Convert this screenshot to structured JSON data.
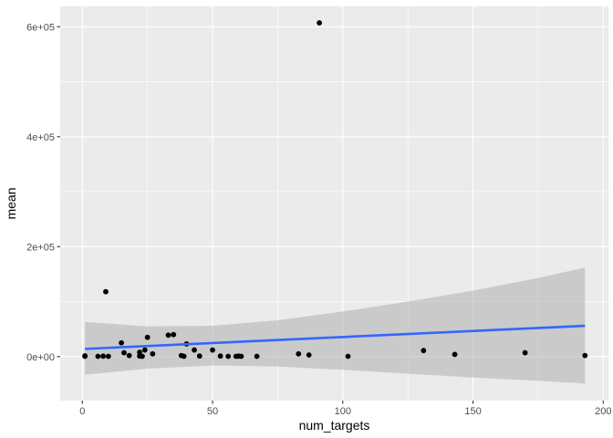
{
  "chart_data": {
    "type": "scatter",
    "title": "",
    "xlabel": "num_targets",
    "ylabel": "mean",
    "xlim": [
      -8.5,
      202
    ],
    "ylim": [
      -80000,
      637000
    ],
    "x_ticks": [
      0,
      50,
      100,
      150,
      200
    ],
    "x_tick_labels": [
      "0",
      "50",
      "100",
      "150",
      "200"
    ],
    "y_ticks": [
      0,
      200000,
      400000,
      600000
    ],
    "y_tick_labels": [
      "0e+00",
      "2e+05",
      "4e+05",
      "6e+05"
    ],
    "grid": true,
    "legend": "none",
    "colors": {
      "panel": "#ebebeb",
      "grid_major": "#ffffff",
      "points": "#000000",
      "trend_line": "#3366ff",
      "confidence_band": "#999999"
    },
    "points": [
      {
        "x": 1,
        "y": 500
      },
      {
        "x": 1,
        "y": 1500
      },
      {
        "x": 6,
        "y": 500
      },
      {
        "x": 8,
        "y": 800
      },
      {
        "x": 9,
        "y": 118000
      },
      {
        "x": 10,
        "y": 500
      },
      {
        "x": 15,
        "y": 25000
      },
      {
        "x": 16,
        "y": 7000
      },
      {
        "x": 18,
        "y": 2000
      },
      {
        "x": 22,
        "y": 8000
      },
      {
        "x": 22,
        "y": 1000
      },
      {
        "x": 23,
        "y": 500
      },
      {
        "x": 24,
        "y": 12000
      },
      {
        "x": 25,
        "y": 35000
      },
      {
        "x": 27,
        "y": 5000
      },
      {
        "x": 33,
        "y": 39000
      },
      {
        "x": 35,
        "y": 40000
      },
      {
        "x": 38,
        "y": 2000
      },
      {
        "x": 39,
        "y": 500
      },
      {
        "x": 40,
        "y": 23000
      },
      {
        "x": 43,
        "y": 12000
      },
      {
        "x": 45,
        "y": 1000
      },
      {
        "x": 50,
        "y": 12000
      },
      {
        "x": 53,
        "y": 1000
      },
      {
        "x": 56,
        "y": 500
      },
      {
        "x": 59,
        "y": 500
      },
      {
        "x": 60,
        "y": 800
      },
      {
        "x": 61,
        "y": 500
      },
      {
        "x": 67,
        "y": 500
      },
      {
        "x": 83,
        "y": 5000
      },
      {
        "x": 87,
        "y": 3000
      },
      {
        "x": 91,
        "y": 607000
      },
      {
        "x": 102,
        "y": 500
      },
      {
        "x": 131,
        "y": 11000
      },
      {
        "x": 143,
        "y": 4000
      },
      {
        "x": 170,
        "y": 7000
      },
      {
        "x": 193,
        "y": 2000
      }
    ],
    "trend_line": {
      "method": "linear",
      "x": [
        1,
        193
      ],
      "y": [
        14000,
        56000
      ]
    },
    "confidence_band": {
      "x": [
        1,
        25,
        50,
        75,
        100,
        125,
        150,
        175,
        193
      ],
      "lower": [
        -33000,
        -22000,
        -16000,
        -18000,
        -24000,
        -31000,
        -38000,
        -44000,
        -49000
      ],
      "upper": [
        63000,
        55000,
        56000,
        66000,
        82000,
        100000,
        120000,
        143000,
        162000
      ]
    }
  }
}
